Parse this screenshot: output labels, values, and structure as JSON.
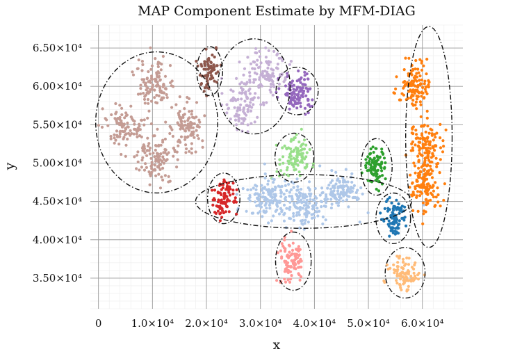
{
  "chart_data": {
    "type": "scatter",
    "title": "MAP Component Estimate by MFM-DIAG",
    "xlabel": "x",
    "ylabel": "y",
    "xlim": [
      -1500,
      67500
    ],
    "ylim": [
      31000,
      68000
    ],
    "grid": true,
    "x_ticks": [
      {
        "value": 0,
        "label": "0"
      },
      {
        "value": 10000,
        "label": "1.0×10⁴"
      },
      {
        "value": 20000,
        "label": "2.0×10⁴"
      },
      {
        "value": 30000,
        "label": "3.0×10⁴"
      },
      {
        "value": 40000,
        "label": "4.0×10⁴"
      },
      {
        "value": 50000,
        "label": "5.0×10⁴"
      },
      {
        "value": 60000,
        "label": "6.0×10⁴"
      }
    ],
    "y_ticks": [
      {
        "value": 35000,
        "label": "3.50×10⁴"
      },
      {
        "value": 40000,
        "label": "4.00×10⁴"
      },
      {
        "value": 45000,
        "label": "4.50×10⁴"
      },
      {
        "value": 50000,
        "label": "5.00×10⁴"
      },
      {
        "value": 55000,
        "label": "5.50×10⁴"
      },
      {
        "value": 60000,
        "label": "6.00×10⁴"
      },
      {
        "value": 65000,
        "label": "6.50×10⁴"
      }
    ],
    "components": [
      {
        "name": "component-brown-light",
        "color": "#c49c94",
        "ellipse": {
          "cx": 10800,
          "cy": 55300,
          "rx": 11300,
          "ry": 9200
        },
        "blobs": [
          {
            "cx": 10500,
            "cy": 60400,
            "sx": 1700,
            "sy": 1700,
            "n": 110
          },
          {
            "cx": 4700,
            "cy": 54700,
            "sx": 1600,
            "sy": 1300,
            "n": 100
          },
          {
            "cx": 16400,
            "cy": 54700,
            "sx": 1500,
            "sy": 1800,
            "n": 100
          },
          {
            "cx": 10600,
            "cy": 50700,
            "sx": 1800,
            "sy": 1500,
            "n": 110
          }
        ]
      },
      {
        "name": "component-brown-dark",
        "color": "#8c564b",
        "ellipse": {
          "cx": 20600,
          "cy": 62000,
          "rx": 2400,
          "ry": 3200
        },
        "blobs": [
          {
            "cx": 20500,
            "cy": 62000,
            "sx": 1000,
            "sy": 1300,
            "n": 70
          }
        ]
      },
      {
        "name": "component-purple-light",
        "color": "#c5b0d5",
        "ellipse": {
          "cx": 28800,
          "cy": 60000,
          "rx": 6700,
          "ry": 6200
        },
        "blobs": [
          {
            "cx": 30700,
            "cy": 61600,
            "sx": 2000,
            "sy": 1700,
            "n": 110
          },
          {
            "cx": 26700,
            "cy": 57400,
            "sx": 1500,
            "sy": 1700,
            "n": 90
          }
        ]
      },
      {
        "name": "component-purple",
        "color": "#9467bd",
        "ellipse": {
          "cx": 36800,
          "cy": 59400,
          "rx": 3900,
          "ry": 3100
        },
        "blobs": [
          {
            "cx": 36900,
            "cy": 59400,
            "sx": 1500,
            "sy": 1300,
            "n": 110
          }
        ]
      },
      {
        "name": "component-green-light",
        "color": "#98df8a",
        "ellipse": {
          "cx": 36300,
          "cy": 50700,
          "rx": 3600,
          "ry": 3200
        },
        "blobs": [
          {
            "cx": 36300,
            "cy": 50800,
            "sx": 1400,
            "sy": 1300,
            "n": 100
          }
        ]
      },
      {
        "name": "component-blue-light",
        "color": "#aec7e8",
        "ellipse": {
          "cx": 38000,
          "cy": 45000,
          "rx": 20000,
          "ry": 3500
        },
        "blobs": [
          {
            "cx": 30800,
            "cy": 45600,
            "sx": 1800,
            "sy": 1300,
            "n": 110
          },
          {
            "cx": 38000,
            "cy": 44600,
            "sx": 2000,
            "sy": 1400,
            "n": 120
          },
          {
            "cx": 45100,
            "cy": 46300,
            "sx": 1700,
            "sy": 1100,
            "n": 100
          },
          {
            "cx": 38000,
            "cy": 45200,
            "sx": 7000,
            "sy": 1500,
            "n": 50
          }
        ]
      },
      {
        "name": "component-red",
        "color": "#d62728",
        "ellipse": {
          "cx": 23200,
          "cy": 45400,
          "rx": 3000,
          "ry": 3300
        },
        "blobs": [
          {
            "cx": 23200,
            "cy": 45400,
            "sx": 1100,
            "sy": 1300,
            "n": 90
          }
        ]
      },
      {
        "name": "component-green",
        "color": "#2ca02c",
        "ellipse": {
          "cx": 51500,
          "cy": 49500,
          "rx": 2900,
          "ry": 3700
        },
        "blobs": [
          {
            "cx": 51500,
            "cy": 49700,
            "sx": 1000,
            "sy": 1300,
            "n": 90
          }
        ]
      },
      {
        "name": "component-blue",
        "color": "#1f77b4",
        "ellipse": {
          "cx": 54600,
          "cy": 42800,
          "rx": 3200,
          "ry": 3300
        },
        "blobs": [
          {
            "cx": 54900,
            "cy": 42600,
            "sx": 1000,
            "sy": 1300,
            "n": 90
          }
        ]
      },
      {
        "name": "component-orange",
        "color": "#ff7f0e",
        "ellipse": {
          "cx": 61200,
          "cy": 53400,
          "rx": 4300,
          "ry": 14400
        },
        "blobs": [
          {
            "cx": 58700,
            "cy": 60000,
            "sx": 1300,
            "sy": 1600,
            "n": 120
          },
          {
            "cx": 60500,
            "cy": 52300,
            "sx": 1400,
            "sy": 1700,
            "n": 120
          },
          {
            "cx": 60400,
            "cy": 47000,
            "sx": 1300,
            "sy": 1600,
            "n": 120
          }
        ]
      },
      {
        "name": "component-pink",
        "color": "#ff9896",
        "ellipse": {
          "cx": 36100,
          "cy": 37200,
          "rx": 3300,
          "ry": 3800
        },
        "blobs": [
          {
            "cx": 35800,
            "cy": 37200,
            "sx": 1100,
            "sy": 1500,
            "n": 100
          }
        ]
      },
      {
        "name": "component-orange-light",
        "color": "#ffbb78",
        "ellipse": {
          "cx": 56800,
          "cy": 35700,
          "rx": 3700,
          "ry": 3300
        },
        "blobs": [
          {
            "cx": 56700,
            "cy": 35700,
            "sx": 1300,
            "sy": 1100,
            "n": 90
          }
        ]
      }
    ]
  }
}
